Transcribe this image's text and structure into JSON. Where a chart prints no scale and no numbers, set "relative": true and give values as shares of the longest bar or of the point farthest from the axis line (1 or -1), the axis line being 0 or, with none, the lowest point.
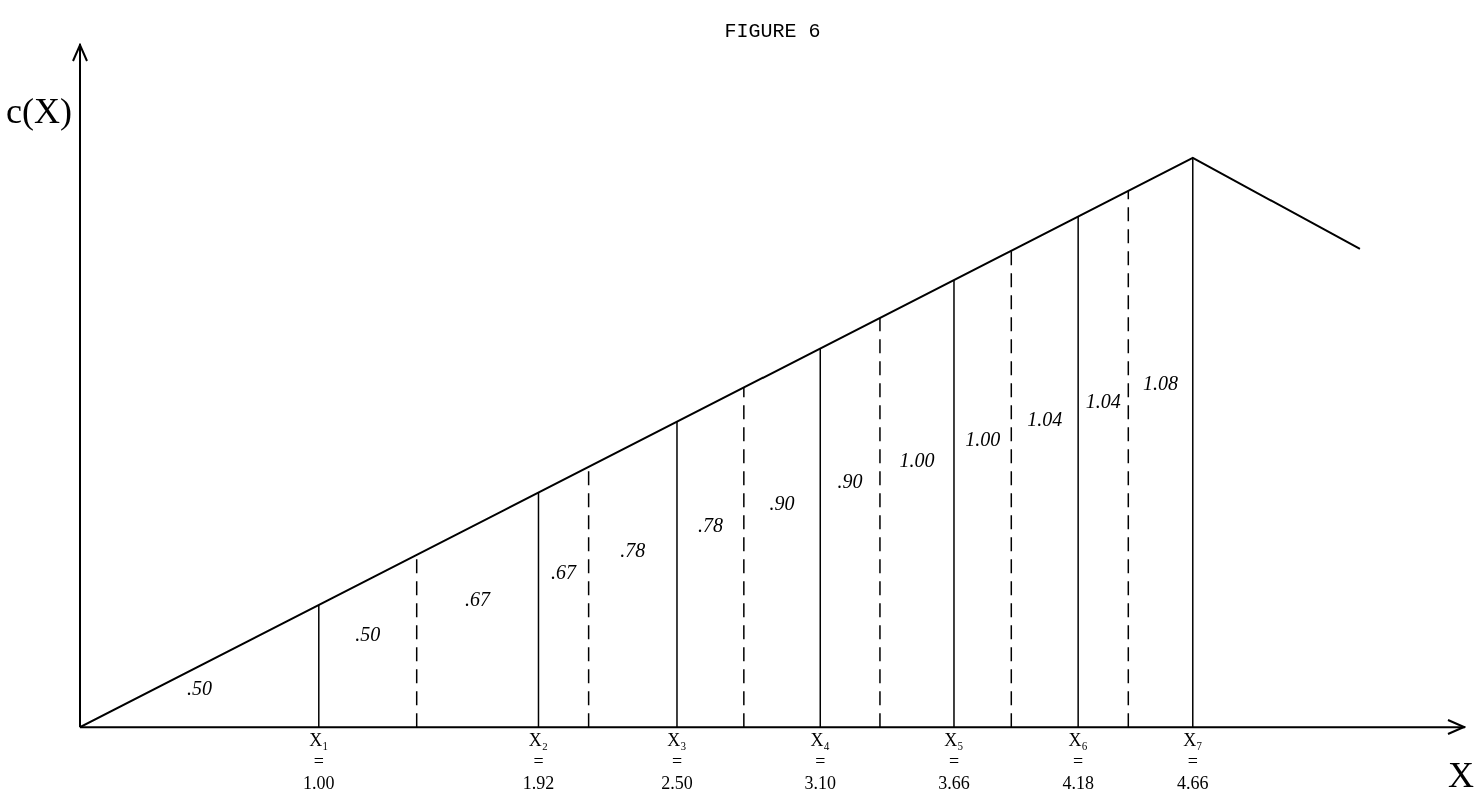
{
  "chart_data": {
    "type": "line",
    "title": "FIGURE 6",
    "xlabel": "X",
    "ylabel": "c(X)",
    "relative": true,
    "tick_labels": "x",
    "grid": false,
    "legend": false,
    "marker": "none",
    "line_style": "solid",
    "xlim": [
      0,
      5.8
    ],
    "xticks": [
      {
        "value": 1.0,
        "label": "X₁ = 1.00"
      },
      {
        "value": 1.92,
        "label": "X₂ = 1.92"
      },
      {
        "value": 2.5,
        "label": "X₃ = 2.50"
      },
      {
        "value": 3.1,
        "label": "X₄ = 3.10"
      },
      {
        "value": 3.66,
        "label": "X₅ = 3.66"
      },
      {
        "value": 4.18,
        "label": "X₆ = 4.18"
      },
      {
        "value": 4.66,
        "label": "X₇ = 4.66"
      }
    ],
    "series": [
      {
        "color": "#000000",
        "x": [
          0,
          4.66,
          5.36
        ],
        "values": [
          0,
          1,
          0.84
        ]
      }
    ],
    "ref_lines": [
      {
        "axis": "x",
        "value": 1.0,
        "line_style": "solid",
        "color": "#000000"
      },
      {
        "axis": "x",
        "value": 1.41,
        "line_style": "dashed",
        "color": "#000000"
      },
      {
        "axis": "x",
        "value": 1.92,
        "line_style": "solid",
        "color": "#000000"
      },
      {
        "axis": "x",
        "value": 2.13,
        "line_style": "dashed",
        "color": "#000000"
      },
      {
        "axis": "x",
        "value": 2.5,
        "line_style": "solid",
        "color": "#000000"
      },
      {
        "axis": "x",
        "value": 2.78,
        "line_style": "dashed",
        "color": "#000000"
      },
      {
        "axis": "x",
        "value": 3.1,
        "line_style": "solid",
        "color": "#000000"
      },
      {
        "axis": "x",
        "value": 3.35,
        "line_style": "dashed",
        "color": "#000000"
      },
      {
        "axis": "x",
        "value": 3.66,
        "line_style": "solid",
        "color": "#000000"
      },
      {
        "axis": "x",
        "value": 3.9,
        "line_style": "dashed",
        "color": "#000000"
      },
      {
        "axis": "x",
        "value": 4.18,
        "line_style": "solid",
        "color": "#000000"
      },
      {
        "axis": "x",
        "value": 4.39,
        "line_style": "dashed",
        "color": "#000000"
      },
      {
        "axis": "x",
        "value": 4.66,
        "line_style": "solid",
        "color": "#000000"
      }
    ],
    "annotations": [
      ".50",
      ".50",
      ".67",
      ".67",
      ".78",
      ".78",
      ".90",
      ".90",
      "1.00",
      "1.00",
      "1.04",
      "1.04",
      "1.08"
    ]
  }
}
